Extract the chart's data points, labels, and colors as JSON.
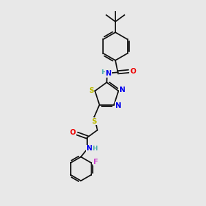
{
  "bg_color": "#e8e8e8",
  "bond_color": "#111111",
  "atom_colors": {
    "N": "#0000ee",
    "S": "#bbbb00",
    "O": "#ee0000",
    "F": "#cc44cc",
    "H": "#44aaaa",
    "C": "#111111"
  },
  "font_size_atom": 7.5,
  "font_size_small": 6.5,
  "lw": 1.3
}
